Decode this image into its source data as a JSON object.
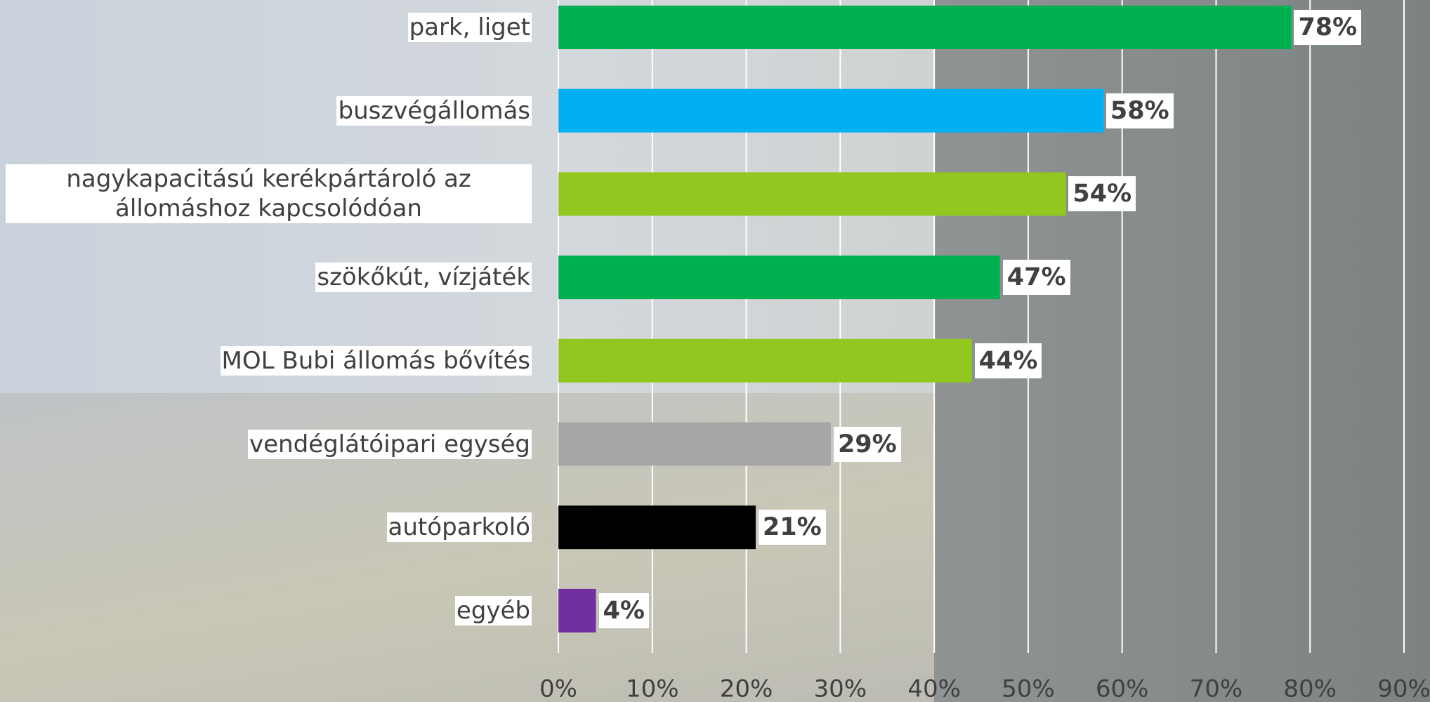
{
  "chart_data": {
    "type": "bar",
    "orientation": "horizontal",
    "categories": [
      "park, liget",
      "buszvégállomás",
      "nagykapacitású kerékpártároló az állomáshoz kapcsolódóan",
      "szökőkút, vízjáték",
      "MOL Bubi állomás bővítés",
      "vendéglátóipari egység",
      "autóparkoló",
      "egyéb"
    ],
    "values": [
      78,
      58,
      54,
      47,
      44,
      29,
      21,
      4
    ],
    "value_labels": [
      "78%",
      "58%",
      "54%",
      "47%",
      "44%",
      "29%",
      "21%",
      "4%"
    ],
    "colors": [
      "#00b050",
      "#00b0f0",
      "#92c71f",
      "#00b050",
      "#92c71f",
      "#a6a6a6",
      "#000000",
      "#7030a0"
    ],
    "xlim": [
      0,
      90
    ],
    "xticks": [
      {
        "value": 0,
        "label": "0%"
      },
      {
        "value": 10,
        "label": "10%"
      },
      {
        "value": 20,
        "label": "20%"
      },
      {
        "value": 30,
        "label": "30%"
      },
      {
        "value": 40,
        "label": "40%"
      },
      {
        "value": 50,
        "label": "50%"
      },
      {
        "value": 60,
        "label": "60%"
      },
      {
        "value": 70,
        "label": "70%"
      },
      {
        "value": 80,
        "label": "80%"
      },
      {
        "value": 90,
        "label": "90%"
      }
    ],
    "grid": true
  }
}
